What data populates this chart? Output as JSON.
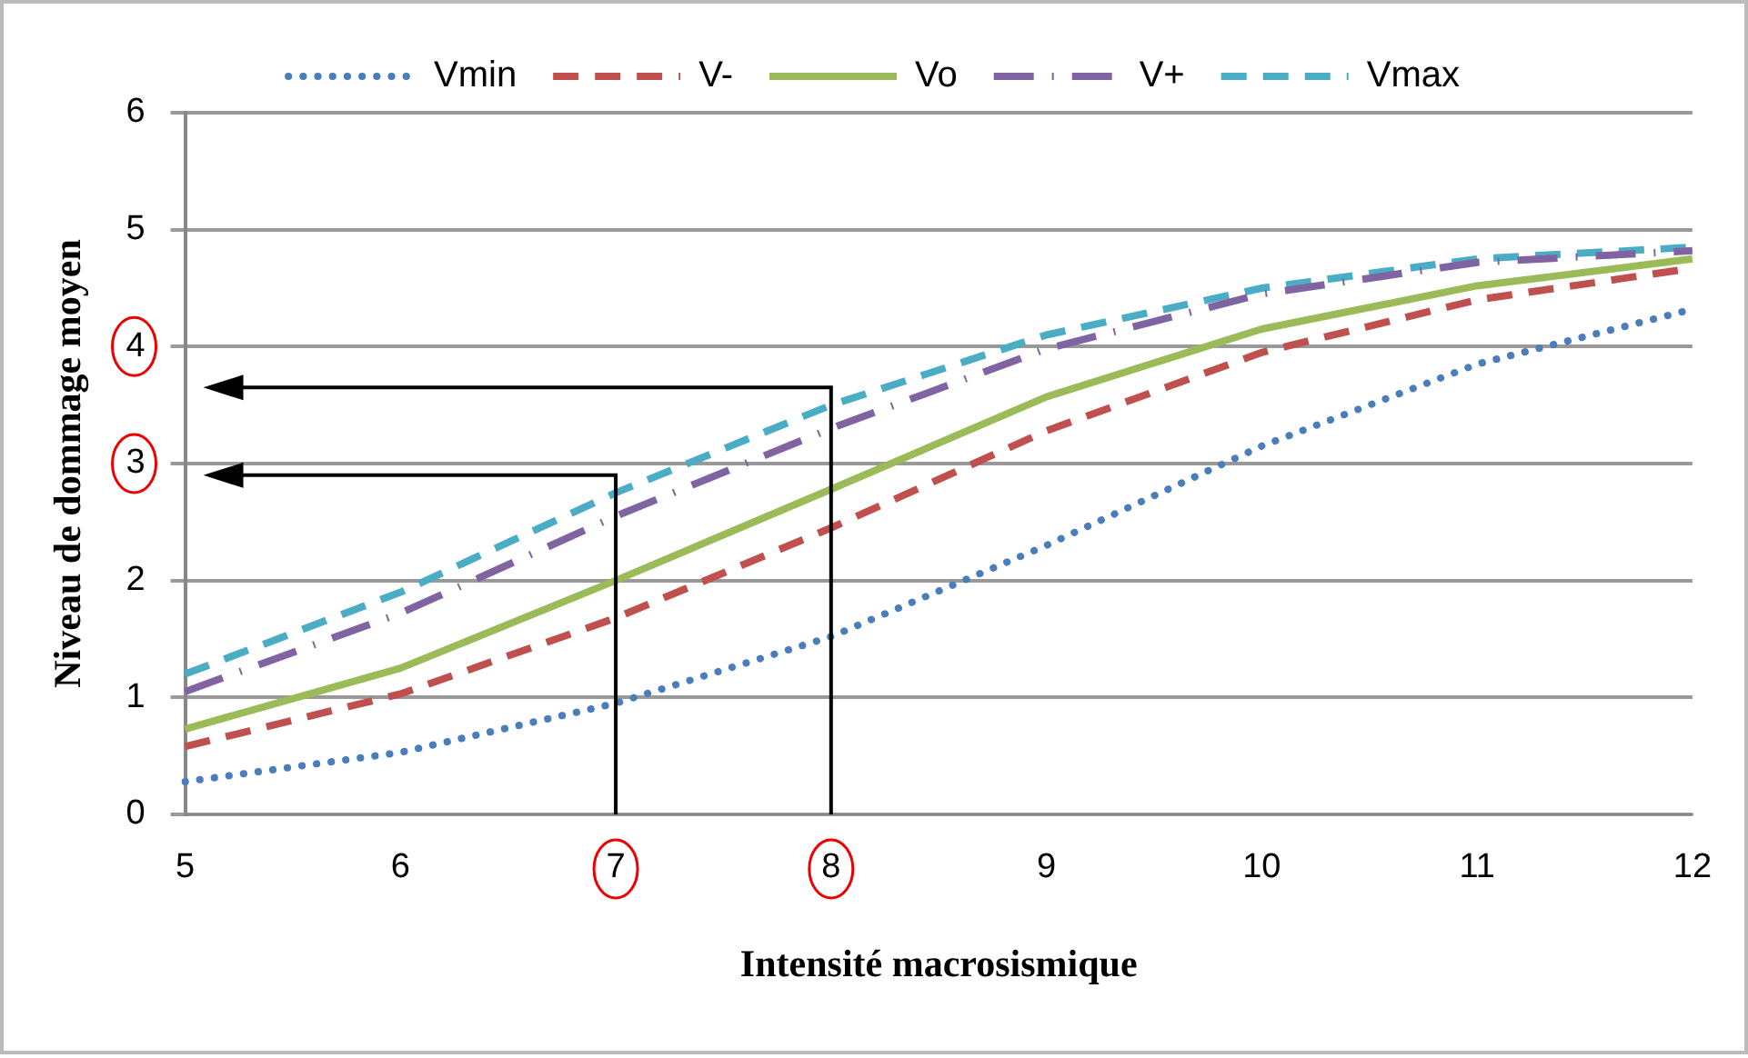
{
  "chart_data": {
    "type": "line",
    "xlabel": "Intensité macrosismique",
    "ylabel": "Niveau de dommage moyen",
    "categories": [
      "5",
      "6",
      "7",
      "8",
      "9",
      "10",
      "11",
      "12"
    ],
    "series": [
      {
        "name": "Vmin",
        "color": "#4a7ebb",
        "line_style": "dotted",
        "values": [
          0.28,
          0.53,
          0.95,
          1.52,
          2.3,
          3.15,
          3.85,
          4.32
        ]
      },
      {
        "name": "V-",
        "color": "#c0504d",
        "line_style": "dashed",
        "values": [
          0.58,
          1.03,
          1.68,
          2.45,
          3.28,
          3.95,
          4.4,
          4.67
        ]
      },
      {
        "name": "Vo",
        "color": "#9bbb59",
        "line_style": "solid",
        "values": [
          0.73,
          1.25,
          2.0,
          2.78,
          3.57,
          4.15,
          4.52,
          4.75
        ]
      },
      {
        "name": "V+",
        "color": "#8064a2",
        "line_style": "dashed",
        "values": [
          1.05,
          1.72,
          2.55,
          3.3,
          3.98,
          4.45,
          4.72,
          4.82
        ]
      },
      {
        "name": "Vmax",
        "color": "#4bacc6",
        "line_style": "dashed",
        "values": [
          1.2,
          1.9,
          2.75,
          3.5,
          4.1,
          4.5,
          4.75,
          4.85
        ]
      }
    ],
    "ylim": [
      0,
      6
    ],
    "yticks": [
      0,
      1,
      2,
      3,
      4,
      5,
      6
    ],
    "grid": "y",
    "legend": "top",
    "marker": "none"
  }
}
